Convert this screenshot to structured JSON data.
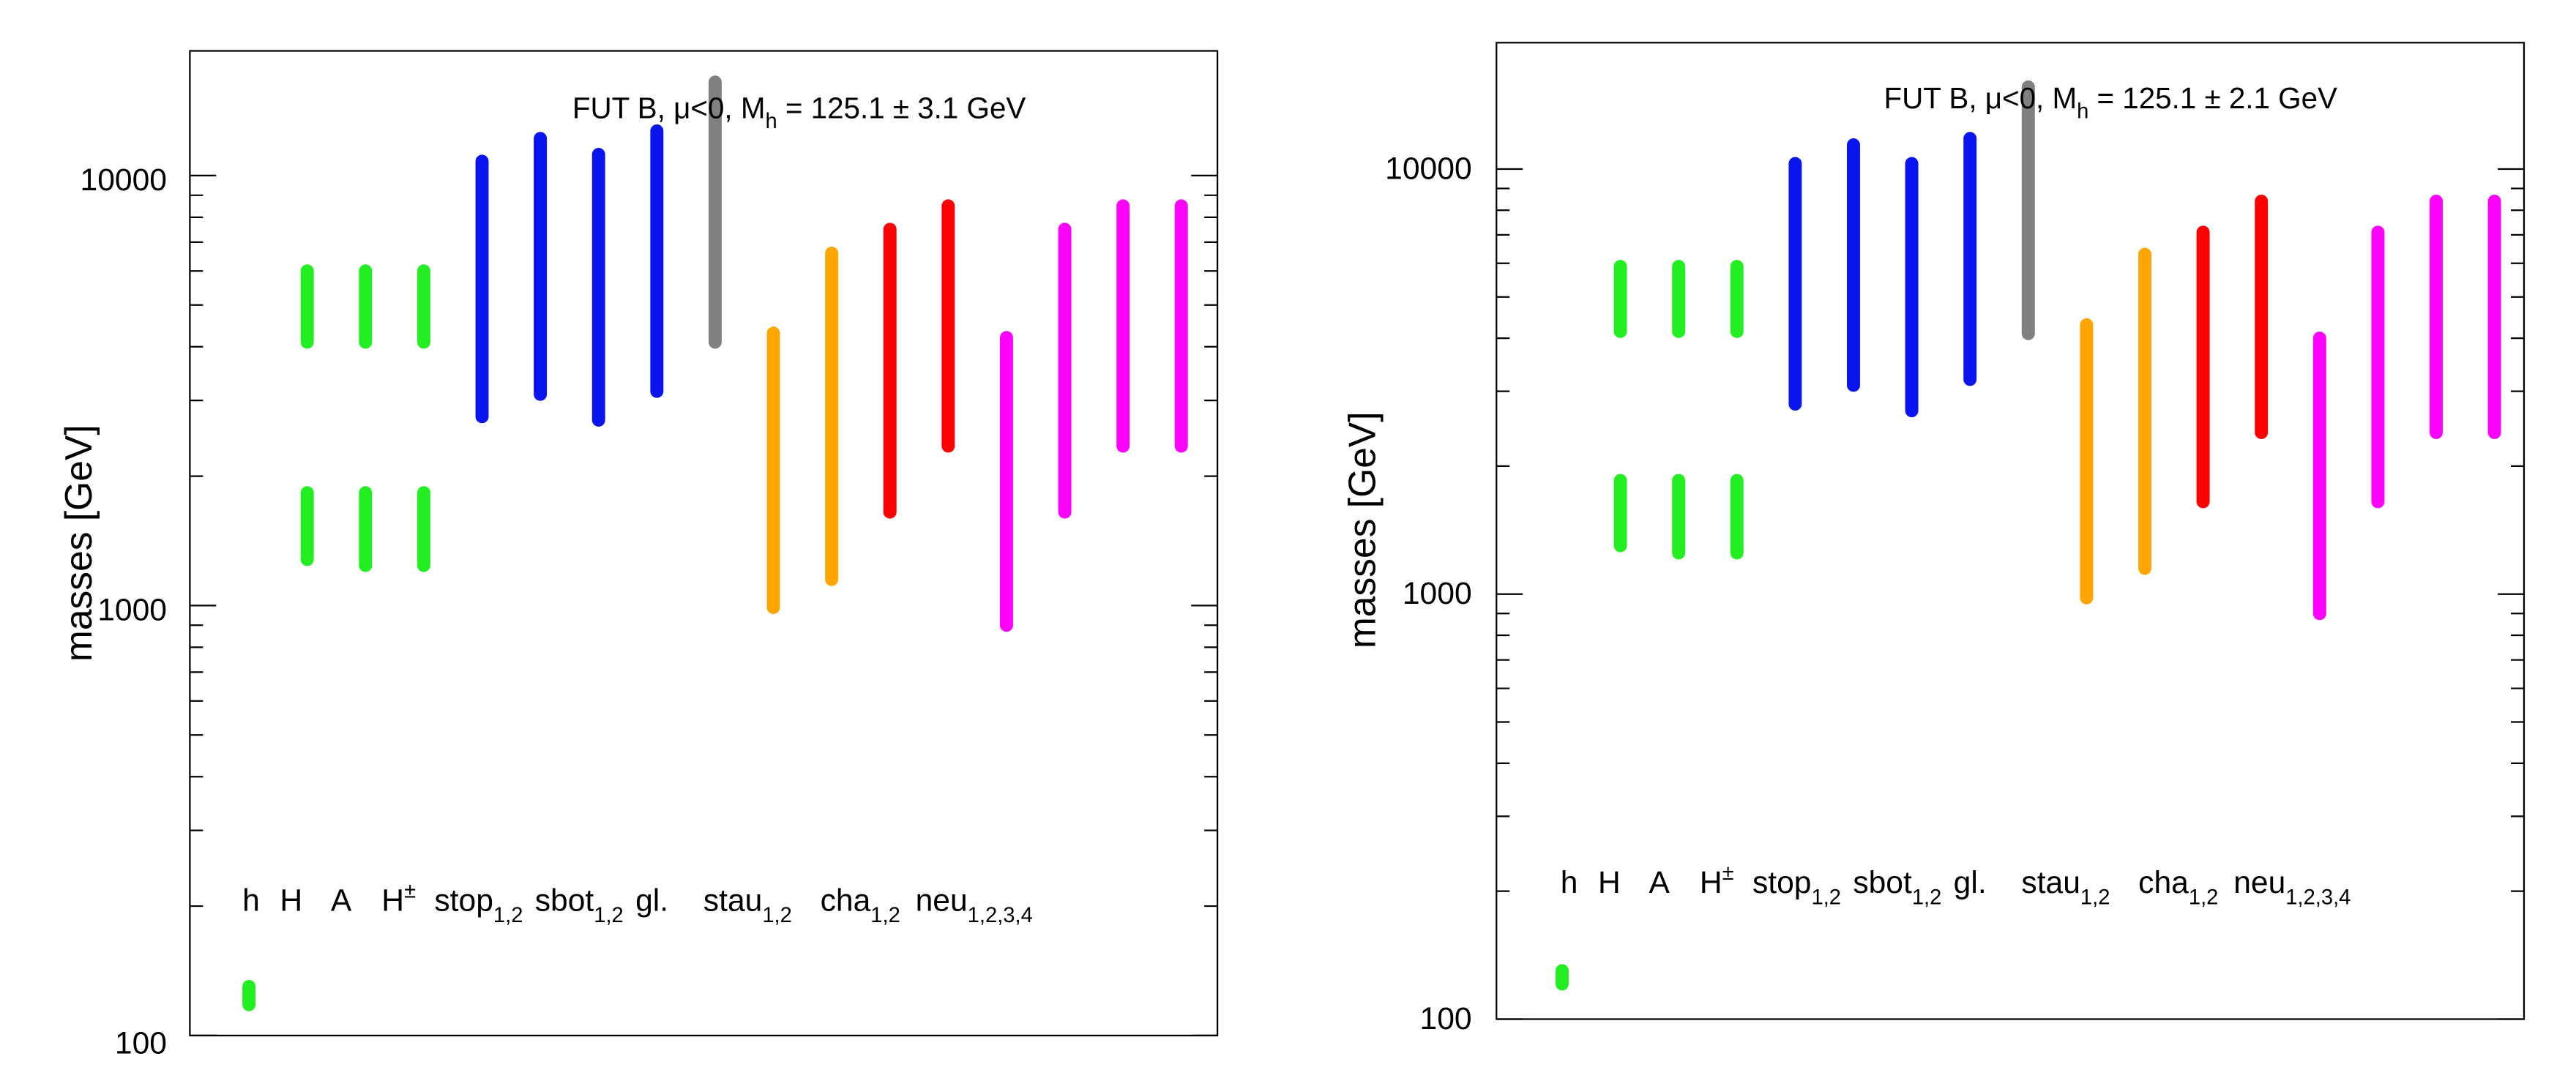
{
  "chart_data": [
    {
      "type": "range",
      "title": "FUT B, μ<0, M",
      "title_sub": "h",
      "title_suffix": " = 125.1 ± 3.1 GeV",
      "ylabel": "masses [GeV]",
      "yscale": "log",
      "ylim": [
        100,
        18000
      ],
      "yticks": [
        100,
        1000,
        10000
      ],
      "yticklabels": [
        "100",
        "1000",
        "10000"
      ],
      "bands": [
        {
          "category": "h",
          "x": 1,
          "color": "#22ee22",
          "min": 118,
          "max": 130
        },
        {
          "category": "H",
          "x": 2,
          "color": "#22ee22",
          "min": 4100,
          "max": 6000
        },
        {
          "category": "H",
          "x": 2,
          "color": "#22ee22",
          "min": 1280,
          "max": 1830
        },
        {
          "category": "A",
          "x": 3,
          "color": "#22ee22",
          "min": 4100,
          "max": 6000
        },
        {
          "category": "A",
          "x": 3,
          "color": "#22ee22",
          "min": 1240,
          "max": 1830
        },
        {
          "category": "H±",
          "x": 4,
          "color": "#22ee22",
          "min": 4100,
          "max": 6000
        },
        {
          "category": "H±",
          "x": 4,
          "color": "#22ee22",
          "min": 1240,
          "max": 1830
        },
        {
          "category": "stop1,2",
          "x": 5,
          "color": "#0a14ee",
          "min": 2750,
          "max": 10800
        },
        {
          "category": "stop1,2",
          "x": 6,
          "color": "#0a14ee",
          "min": 3100,
          "max": 12200
        },
        {
          "category": "sbot1,2",
          "x": 7,
          "color": "#0a14ee",
          "min": 2700,
          "max": 11200
        },
        {
          "category": "sbot1,2",
          "x": 8,
          "color": "#0a14ee",
          "min": 3150,
          "max": 12700
        },
        {
          "category": "gl.",
          "x": 9,
          "color": "#808080",
          "min": 4100,
          "max": 16500
        },
        {
          "category": "stau1,2",
          "x": 10,
          "color": "#ffa500",
          "min": 990,
          "max": 4300
        },
        {
          "category": "stau1,2",
          "x": 11,
          "color": "#ffa500",
          "min": 1150,
          "max": 6600
        },
        {
          "category": "cha1,2",
          "x": 12,
          "color": "#ff0000",
          "min": 1650,
          "max": 7500
        },
        {
          "category": "cha1,2",
          "x": 13,
          "color": "#ff0000",
          "min": 2350,
          "max": 8500
        },
        {
          "category": "neu1,2,3,4",
          "x": 14,
          "color": "#ff00ff",
          "min": 900,
          "max": 4200
        },
        {
          "category": "neu1,2,3,4",
          "x": 15,
          "color": "#ff00ff",
          "min": 1650,
          "max": 7500
        },
        {
          "category": "neu1,2,3,4",
          "x": 16,
          "color": "#ff00ff",
          "min": 2350,
          "max": 8500
        },
        {
          "category": "neu1,2,3,4",
          "x": 17,
          "color": "#ff00ff",
          "min": 2350,
          "max": 8500
        }
      ],
      "labels": [
        {
          "text": "h",
          "sub": "",
          "sup": ""
        },
        {
          "text": "H",
          "sub": "",
          "sup": ""
        },
        {
          "text": "A",
          "sub": "",
          "sup": ""
        },
        {
          "text": "H",
          "sub": "",
          "sup": "±"
        },
        {
          "text": "stop",
          "sub": "1,2",
          "sup": ""
        },
        {
          "text": "sbot",
          "sub": "1,2",
          "sup": ""
        },
        {
          "text": "gl.",
          "sub": "",
          "sup": ""
        },
        {
          "text": "stau",
          "sub": "1,2",
          "sup": ""
        },
        {
          "text": "cha",
          "sub": "1,2",
          "sup": ""
        },
        {
          "text": "neu",
          "sub": "1,2,3,4",
          "sup": ""
        }
      ]
    },
    {
      "type": "range",
      "title": "FUT B, μ<0, M",
      "title_sub": "h",
      "title_suffix": " = 125.1 ± 2.1 GeV",
      "ylabel": "masses [GeV]",
      "yscale": "log",
      "ylim": [
        100,
        18000
      ],
      "yticks": [
        100,
        1000,
        10000
      ],
      "yticklabels": [
        "100",
        "1000",
        "10000"
      ],
      "bands": [
        {
          "category": "h",
          "x": 1,
          "color": "#22ee22",
          "min": 121,
          "max": 130
        },
        {
          "category": "H",
          "x": 2,
          "color": "#22ee22",
          "min": 4150,
          "max": 5900
        },
        {
          "category": "H",
          "x": 2,
          "color": "#22ee22",
          "min": 1300,
          "max": 1850
        },
        {
          "category": "A",
          "x": 3,
          "color": "#22ee22",
          "min": 4150,
          "max": 5900
        },
        {
          "category": "A",
          "x": 3,
          "color": "#22ee22",
          "min": 1250,
          "max": 1850
        },
        {
          "category": "H±",
          "x": 4,
          "color": "#22ee22",
          "min": 4150,
          "max": 5900
        },
        {
          "category": "H±",
          "x": 4,
          "color": "#22ee22",
          "min": 1250,
          "max": 1850
        },
        {
          "category": "stop1,2",
          "x": 5,
          "color": "#0a14ee",
          "min": 2800,
          "max": 10300
        },
        {
          "category": "stop1,2",
          "x": 6,
          "color": "#0a14ee",
          "min": 3100,
          "max": 11400
        },
        {
          "category": "sbot1,2",
          "x": 7,
          "color": "#0a14ee",
          "min": 2700,
          "max": 10300
        },
        {
          "category": "sbot1,2",
          "x": 8,
          "color": "#0a14ee",
          "min": 3200,
          "max": 11800
        },
        {
          "category": "gl.",
          "x": 9,
          "color": "#808080",
          "min": 4100,
          "max": 15600
        },
        {
          "category": "stau1,2",
          "x": 10,
          "color": "#ffa500",
          "min": 980,
          "max": 4300
        },
        {
          "category": "stau1,2",
          "x": 11,
          "color": "#ffa500",
          "min": 1150,
          "max": 6300
        },
        {
          "category": "cha1,2",
          "x": 12,
          "color": "#ff0000",
          "min": 1650,
          "max": 7100
        },
        {
          "category": "cha1,2",
          "x": 13,
          "color": "#ff0000",
          "min": 2400,
          "max": 8400
        },
        {
          "category": "neu1,2,3,4",
          "x": 14,
          "color": "#ff00ff",
          "min": 900,
          "max": 4000
        },
        {
          "category": "neu1,2,3,4",
          "x": 15,
          "color": "#ff00ff",
          "min": 1650,
          "max": 7100
        },
        {
          "category": "neu1,2,3,4",
          "x": 16,
          "color": "#ff00ff",
          "min": 2400,
          "max": 8400
        },
        {
          "category": "neu1,2,3,4",
          "x": 17,
          "color": "#ff00ff",
          "min": 2400,
          "max": 8400
        }
      ],
      "labels": [
        {
          "text": "h",
          "sub": "",
          "sup": ""
        },
        {
          "text": "H",
          "sub": "",
          "sup": ""
        },
        {
          "text": "A",
          "sub": "",
          "sup": ""
        },
        {
          "text": "H",
          "sub": "",
          "sup": "±"
        },
        {
          "text": "stop",
          "sub": "1,2",
          "sup": ""
        },
        {
          "text": "sbot",
          "sub": "1,2",
          "sup": ""
        },
        {
          "text": "gl.",
          "sub": "",
          "sup": ""
        },
        {
          "text": "stau",
          "sub": "1,2",
          "sup": ""
        },
        {
          "text": "cha",
          "sub": "1,2",
          "sup": ""
        },
        {
          "text": "neu",
          "sub": "1,2,3,4",
          "sup": ""
        }
      ]
    }
  ]
}
